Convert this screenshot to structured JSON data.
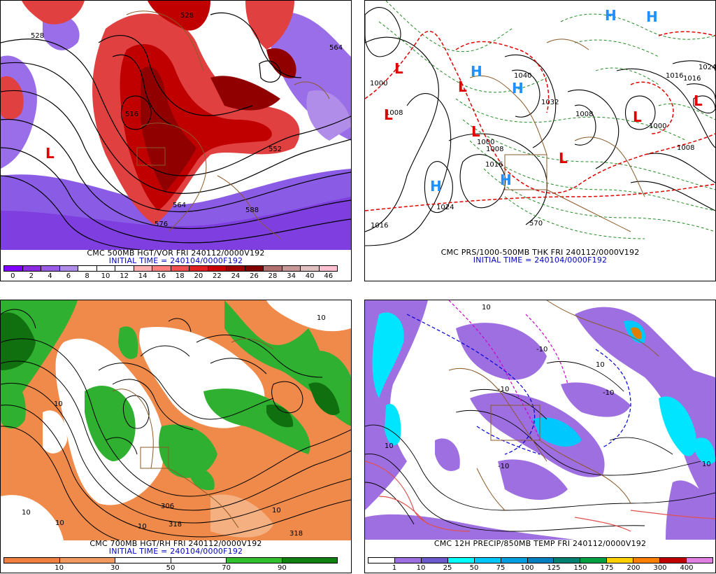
{
  "panels": [
    {
      "id": "vort500",
      "title": "CMC 500MB HGT/VOR FRI 240112/0000V192",
      "initial": "INITIAL TIME = 240104/0000F192",
      "colorbar_labels": [
        "0",
        "2",
        "4",
        "6",
        "8",
        "10",
        "12",
        "14",
        "16",
        "18",
        "20",
        "22",
        "24",
        "26",
        "28",
        "34",
        "40",
        "46"
      ],
      "colorbar_colors": [
        "#7f00ff",
        "#8a2be2",
        "#9a5ce6",
        "#b08de8",
        "#ffffff",
        "#ffffff",
        "#ffffff",
        "#ffb0b0",
        "#ff7f7f",
        "#f05050",
        "#e02020",
        "#c80000",
        "#a00000",
        "#800000",
        "#b07070",
        "#c89898",
        "#e0c0c0",
        "#ffc0d0"
      ],
      "contour_labels": [
        "528",
        "528",
        "516",
        "552",
        "564",
        "576",
        "588",
        "564"
      ],
      "symbols": [
        {
          "t": "L"
        }
      ]
    },
    {
      "id": "prs1000",
      "title": "CMC PRS/1000-500MB THK FRI 240112/0000V192",
      "initial": "INITIAL TIME = 240104/0000F192",
      "contour_labels": [
        "1000",
        "1008",
        "1016",
        "1024",
        "1040",
        "1032",
        "1008",
        "1000",
        "1008",
        "1016",
        "1016",
        "1000",
        "1008",
        "1016",
        "570",
        "1024"
      ],
      "symbols": [
        {
          "t": "L"
        },
        {
          "t": "H"
        },
        {
          "t": "H"
        },
        {
          "t": "L"
        },
        {
          "t": "H"
        },
        {
          "t": "L"
        },
        {
          "t": "L"
        },
        {
          "t": "H"
        },
        {
          "t": "L"
        },
        {
          "t": "L"
        },
        {
          "t": "H"
        },
        {
          "t": "H"
        },
        {
          "t": "L"
        }
      ]
    },
    {
      "id": "rh700",
      "title": "CMC 700MB HGT/RH FRI 240112/0000V192",
      "initial": "INITIAL TIME = 240104/0000F192",
      "colorbar_labels": [
        "10",
        "30",
        "50",
        "70",
        "90"
      ],
      "colorbar_colors": [
        "#f08040",
        "#f09a60",
        "#ffffff",
        "#ffffff",
        "#30c030",
        "#108010"
      ],
      "contour_labels": [
        "10",
        "10",
        "10",
        "10",
        "306",
        "318",
        "318",
        "10",
        "10"
      ],
      "symbols": []
    },
    {
      "id": "precip12",
      "title": "CMC 12H PRECIP/850MB TEMP FRI 240112/0000V192",
      "initial": "",
      "colorbar_labels": [
        "1",
        "10",
        "25",
        "50",
        "75",
        "100",
        "125",
        "150",
        "175",
        "200",
        "300",
        "400"
      ],
      "colorbar_colors": [
        "#ffffff",
        "#9e6fe0",
        "#6a5acd",
        "#00ffff",
        "#00c8ff",
        "#00a0e0",
        "#0080c0",
        "#008070",
        "#00a040",
        "#ffd000",
        "#ff8000",
        "#c00000",
        "#e080e0"
      ],
      "contour_labels": [
        "10",
        "10",
        "10",
        "10",
        "-10",
        "-10",
        "-10",
        "-10"
      ],
      "symbols": []
    }
  ]
}
